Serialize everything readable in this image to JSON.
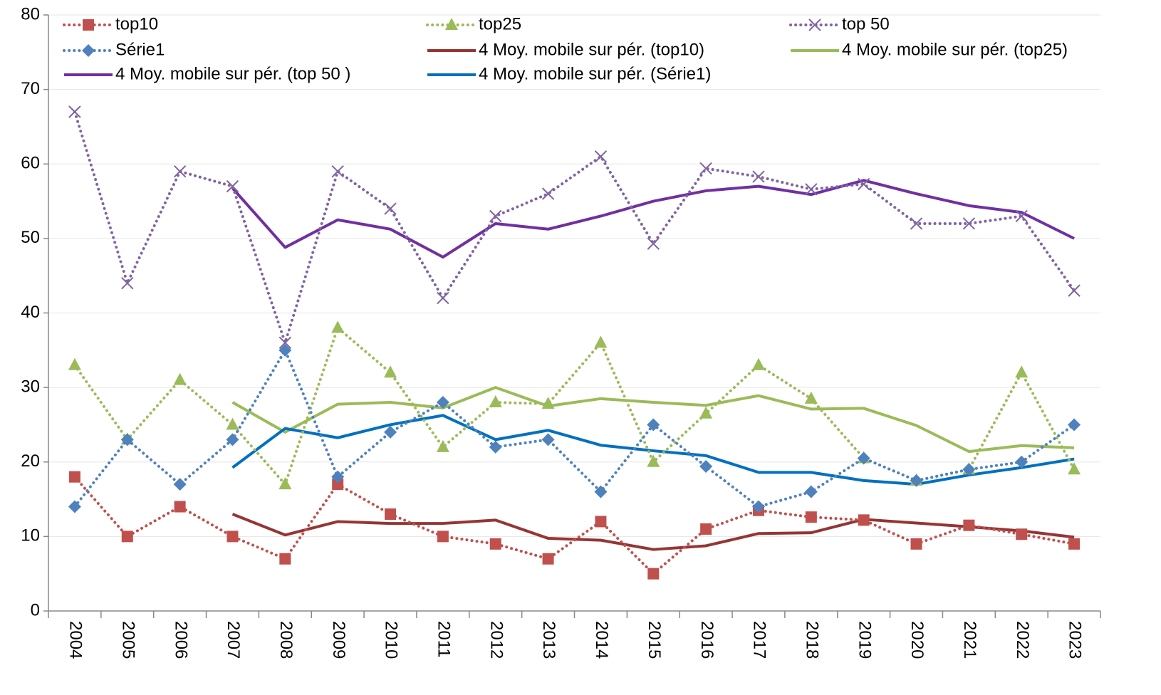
{
  "chart_data": {
    "type": "line",
    "categories": [
      "2004",
      "2005",
      "2006",
      "2007",
      "2008",
      "2009",
      "2010",
      "2011",
      "2012",
      "2013",
      "2014",
      "2015",
      "2016",
      "2017",
      "2018",
      "2019",
      "2020",
      "2021",
      "2022",
      "2023"
    ],
    "series": [
      {
        "name": "top10",
        "color": "#c0504d",
        "style": "dotted",
        "marker": "square",
        "values": [
          18,
          10,
          14,
          10,
          7,
          17,
          13,
          10,
          9,
          7,
          12,
          5,
          11,
          13.5,
          12.6,
          12.2,
          9,
          11.5,
          10.3,
          9
        ]
      },
      {
        "name": "top25",
        "color": "#9bbb59",
        "style": "dotted",
        "marker": "triangle",
        "values": [
          33,
          23,
          31,
          25,
          17,
          38,
          32,
          22,
          28,
          27.8,
          36,
          20,
          26.5,
          33,
          28.5,
          20.5,
          17.5,
          19,
          32,
          19
        ]
      },
      {
        "name": "top 50",
        "color": "#8064a2",
        "style": "dotted",
        "marker": "x",
        "values": [
          67,
          44,
          59,
          57,
          36,
          59,
          54,
          42,
          53,
          56,
          61,
          49.3,
          59.4,
          58.3,
          56.6,
          57.3,
          52,
          52,
          53,
          43
        ]
      },
      {
        "name": "Série1",
        "color": "#4f81bd",
        "style": "dotted",
        "marker": "diamond",
        "values": [
          14,
          23,
          17,
          23,
          35,
          18,
          24,
          28,
          22,
          23,
          16,
          25,
          19.4,
          14,
          16,
          20.5,
          17.5,
          19,
          20,
          25
        ]
      },
      {
        "name": "4 Moy. mobile sur pér. (top10)",
        "color": "#943634",
        "style": "solid",
        "values": [
          null,
          null,
          null,
          13,
          10.2,
          12,
          11.75,
          11.75,
          12.2,
          9.75,
          9.5,
          8.25,
          8.75,
          10.4,
          10.5,
          12.3,
          11.8,
          11.3,
          10.75,
          9.9
        ]
      },
      {
        "name": "4 Moy. mobile sur pér. (top25)",
        "color": "#9bbb59",
        "style": "solid",
        "values": [
          null,
          null,
          null,
          28,
          24,
          27.75,
          28,
          27.25,
          30,
          27.5,
          28.5,
          28,
          27.6,
          28.9,
          27.1,
          27.2,
          24.9,
          21.4,
          22.2,
          21.9
        ]
      },
      {
        "name": "4 Moy. mobile sur pér. (top 50 )",
        "color": "#7030a0",
        "style": "solid",
        "values": [
          null,
          null,
          null,
          56.75,
          48.8,
          52.5,
          51.25,
          47.5,
          52,
          51.25,
          53,
          55,
          56.4,
          57,
          55.9,
          57.8,
          56,
          54.4,
          53.5,
          50
        ]
      },
      {
        "name": "4 Moy. mobile sur pér. (Série1)",
        "color": "#0070c0",
        "style": "solid",
        "values": [
          null,
          null,
          null,
          19.25,
          24.5,
          23.25,
          25,
          26.25,
          23,
          24.25,
          22.25,
          21.5,
          20.85,
          18.6,
          18.6,
          17.5,
          17,
          18.25,
          19.25,
          20.4
        ]
      }
    ],
    "ylim": [
      0,
      80
    ],
    "yticks": [
      0,
      10,
      20,
      30,
      40,
      50,
      60,
      70,
      80
    ],
    "grid": true
  }
}
